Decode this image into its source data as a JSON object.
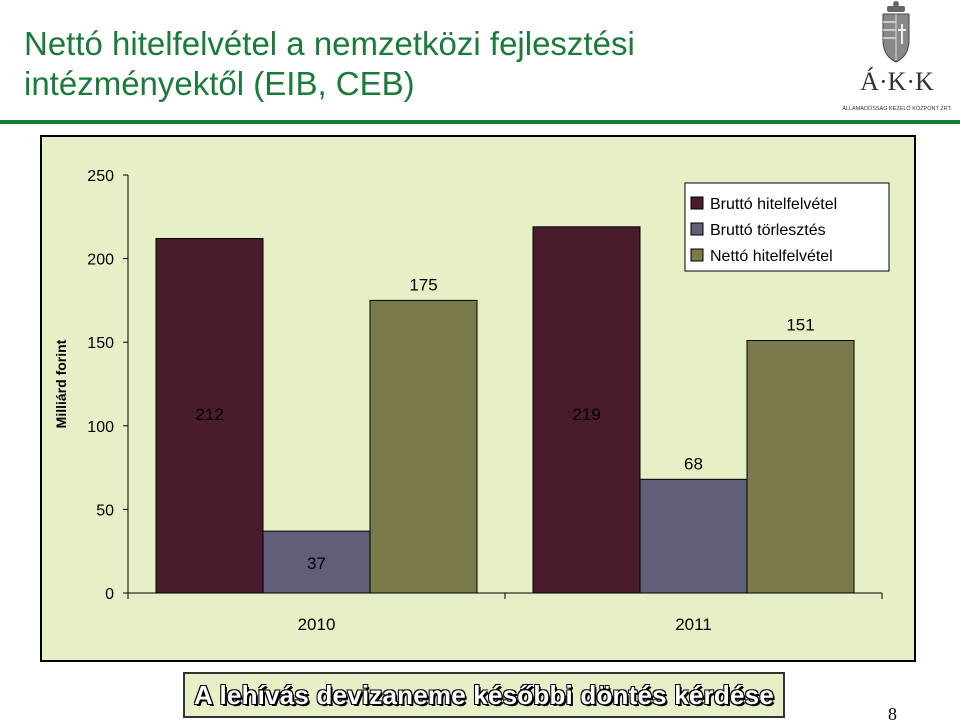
{
  "header": {
    "title_line1": "Nettó hitelfelvétel a nemzetközi fejlesztési",
    "title_line2": "intézményektől (EIB, CEB)",
    "logo_text": "Á·K·K",
    "logo_subtext": "ÁLLAMADÓSSÁG KEZELŐ KÖZPONT ZRT.",
    "logo_icon": "hungarian-coat-of-arms-icon"
  },
  "colors": {
    "title": "#1a7a3a",
    "panel_bg": "#e6f0c6",
    "series": [
      "#4a1a2e",
      "#5f5f7a",
      "#7a7a4a"
    ]
  },
  "chart_data": {
    "type": "bar",
    "categories": [
      "2010",
      "2011"
    ],
    "series": [
      {
        "name": "Bruttó hitelfelvétel",
        "values": [
          212,
          219
        ]
      },
      {
        "name": "Bruttó törlesztés",
        "values": [
          37,
          68
        ]
      },
      {
        "name": "Nettó hitelfelvétel",
        "values": [
          175,
          151
        ]
      }
    ],
    "data_labels": [
      [
        "212",
        "37",
        "175"
      ],
      [
        "219",
        "68",
        "151"
      ]
    ],
    "ylabel": "Milliárd forint",
    "ylim": [
      0,
      250
    ],
    "yticks": [
      0,
      50,
      100,
      150,
      200,
      250
    ],
    "grid": false,
    "legend_position": "top-right"
  },
  "footer": {
    "banner_text": "A lehívás devizaneme későbbi döntés kérdése",
    "page_number": "8"
  }
}
